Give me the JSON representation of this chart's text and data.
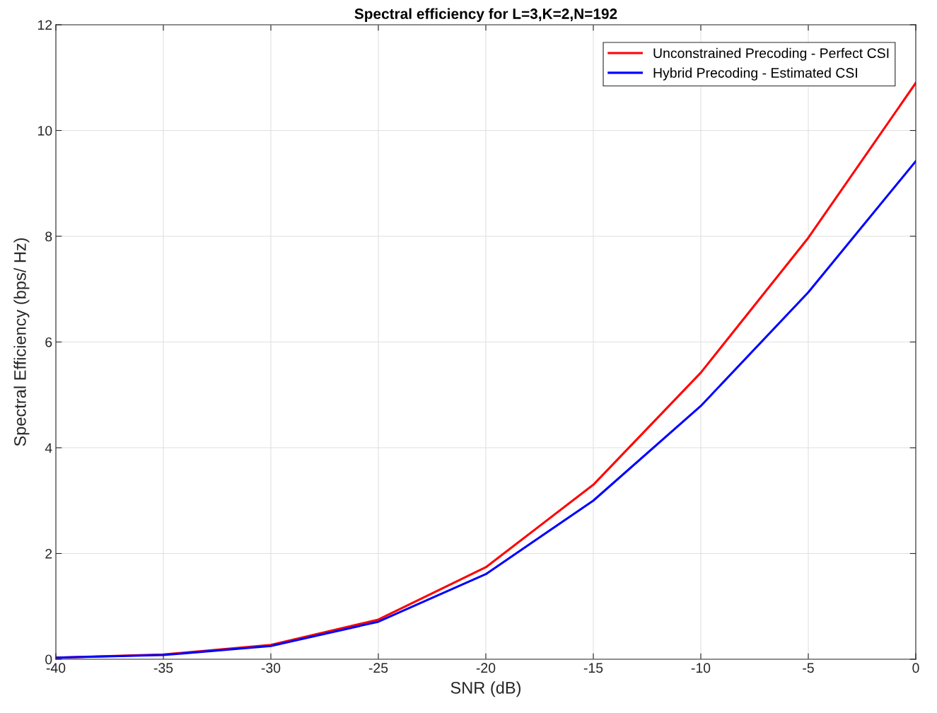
{
  "chart_data": {
    "type": "line",
    "title": "Spectral efficiency for L=3,K=2,N=192",
    "xlabel": "SNR (dB)",
    "ylabel": "Spectral Efficiency (bps/ Hz)",
    "x": [
      -40,
      -35,
      -30,
      -25,
      -20,
      -15,
      -10,
      -5,
      0
    ],
    "series": [
      {
        "name": "Unconstrained Precoding - Perfect CSI",
        "color": "#ff0000",
        "values": [
          0.03,
          0.09,
          0.27,
          0.75,
          1.74,
          3.3,
          5.42,
          7.97,
          10.9
        ]
      },
      {
        "name": "Hybrid Precoding - Estimated CSI",
        "color": "#0000ff",
        "values": [
          0.03,
          0.08,
          0.25,
          0.71,
          1.61,
          3.0,
          4.79,
          6.94,
          9.42
        ]
      }
    ],
    "xlim": [
      -40,
      0
    ],
    "xticks": [
      -40,
      -35,
      -30,
      -25,
      -20,
      -15,
      -10,
      -5,
      0
    ],
    "ylim": [
      0,
      12
    ],
    "yticks": [
      0,
      2,
      4,
      6,
      8,
      10,
      12
    ],
    "grid": true,
    "legend": "top right",
    "marker": "none",
    "line_style": "solid"
  }
}
